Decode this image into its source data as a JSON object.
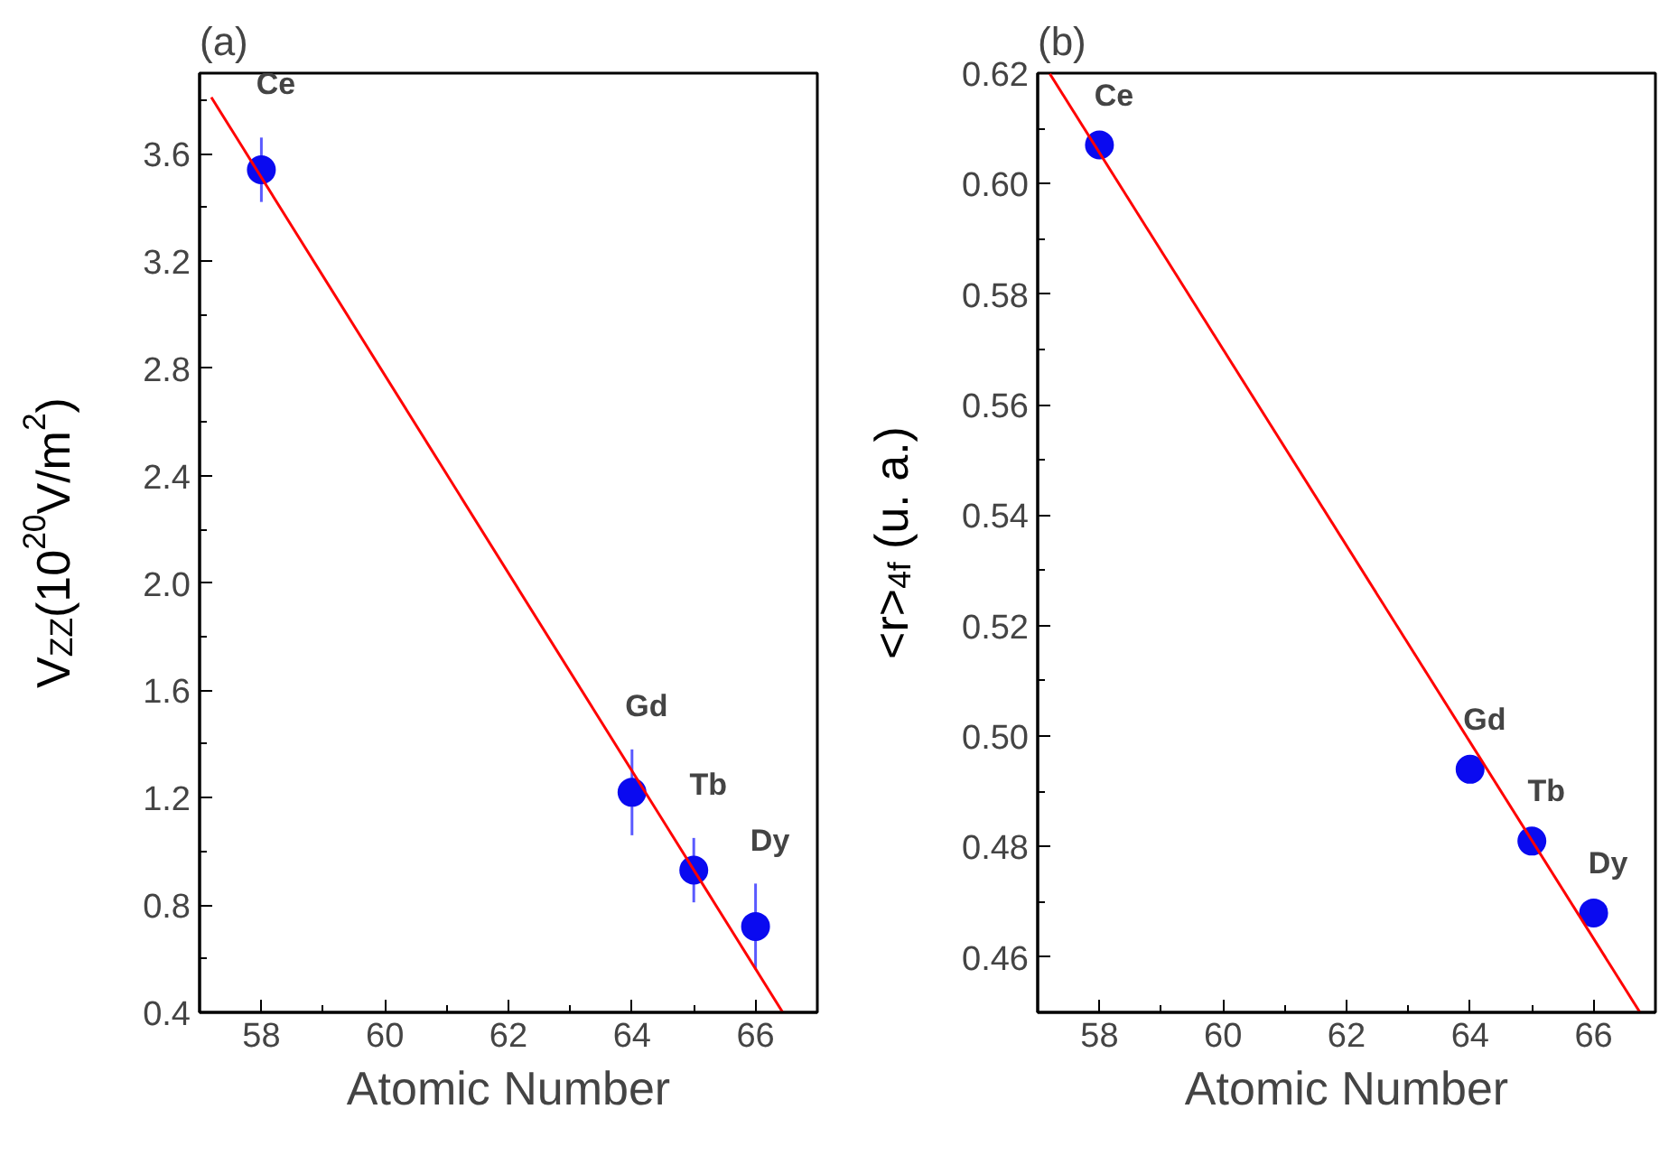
{
  "chart_data": [
    {
      "type": "scatter",
      "title": "(a)",
      "xlabel": "Atomic Number",
      "ylabel": "V$_{ZZ}$(10$^{20}$V/m$^{2}$)",
      "xlim": [
        57,
        67
      ],
      "ylim": [
        0.4,
        3.9
      ],
      "xticks": [
        58,
        {
          "value": 59,
          "label": null
        },
        60,
        {
          "value": 61,
          "label": null
        },
        62,
        {
          "value": 63,
          "label": null
        },
        64,
        {
          "value": 65,
          "label": null
        },
        66
      ],
      "yticks": [
        0.4,
        {
          "value": 0.6,
          "label": null
        },
        0.8,
        {
          "value": 1.0,
          "label": null
        },
        1.2,
        {
          "value": 1.4,
          "label": null
        },
        1.6,
        {
          "value": 1.8,
          "label": null
        },
        {
          "value": 2.0,
          "label": "2.0"
        },
        {
          "value": 2.2,
          "label": null
        },
        2.4,
        {
          "value": 2.6,
          "label": null
        },
        2.8,
        {
          "value": 3.0,
          "label": null
        },
        3.2,
        {
          "value": 3.4,
          "label": null
        },
        3.6,
        {
          "value": 3.8,
          "label": null
        }
      ],
      "series": [
        {
          "type": "scatter",
          "marker": "circle",
          "color": "#0a0af0",
          "x": [
            58,
            64,
            65,
            66
          ],
          "values": [
            3.54,
            1.22,
            0.93,
            0.72
          ],
          "errors": [
            0.12,
            0.16,
            0.12,
            0.16
          ]
        },
        {
          "type": "line",
          "color": "#ff0000",
          "x": [
            57.19,
            66.44
          ],
          "values": [
            3.81,
            0.4
          ]
        }
      ],
      "annotations": [
        {
          "text": "Ce",
          "x": 58,
          "y": 3.54
        },
        {
          "text": "Gd",
          "x": 64,
          "y": 1.22
        },
        {
          "text": "Tb",
          "x": 65,
          "y": 0.93
        },
        {
          "text": "Dy",
          "x": 66,
          "y": 0.72
        }
      ]
    },
    {
      "type": "scatter",
      "title": "(b)",
      "xlabel": "Atomic Number",
      "ylabel": "<r>$_{4f}$ (u. a.)",
      "xlim": [
        57,
        67
      ],
      "ylim": [
        0.45,
        0.62
      ],
      "xticks": [
        58,
        {
          "value": 59,
          "label": null
        },
        60,
        {
          "value": 61,
          "label": null
        },
        62,
        {
          "value": 63,
          "label": null
        },
        64,
        {
          "value": 65,
          "label": null
        },
        66
      ],
      "yticks": [
        {
          "value": 0.45,
          "label": null
        },
        0.46,
        {
          "value": 0.47,
          "label": null
        },
        0.48,
        {
          "value": 0.49,
          "label": null
        },
        {
          "value": 0.5,
          "label": "0.50"
        },
        {
          "value": 0.51,
          "label": null
        },
        0.52,
        {
          "value": 0.53,
          "label": null
        },
        0.54,
        {
          "value": 0.55,
          "label": null
        },
        0.56,
        {
          "value": 0.57,
          "label": null
        },
        0.58,
        {
          "value": 0.59,
          "label": null
        },
        {
          "value": 0.6,
          "label": "0.60"
        },
        {
          "value": 0.61,
          "label": null
        },
        0.62
      ],
      "series": [
        {
          "type": "scatter",
          "marker": "circle",
          "color": "#0a0af0",
          "x": [
            58,
            64,
            65,
            66
          ],
          "values": [
            0.607,
            0.494,
            0.481,
            0.468
          ]
        },
        {
          "type": "line",
          "color": "#ff0000",
          "x": [
            57.19,
            66.75
          ],
          "values": [
            0.62,
            0.45
          ]
        }
      ],
      "annotations": [
        {
          "text": "Ce",
          "x": 58,
          "y": 0.607
        },
        {
          "text": "Gd",
          "x": 64,
          "y": 0.494
        },
        {
          "text": "Tb",
          "x": 65,
          "y": 0.481
        },
        {
          "text": "Dy",
          "x": 66,
          "y": 0.468
        }
      ]
    }
  ]
}
